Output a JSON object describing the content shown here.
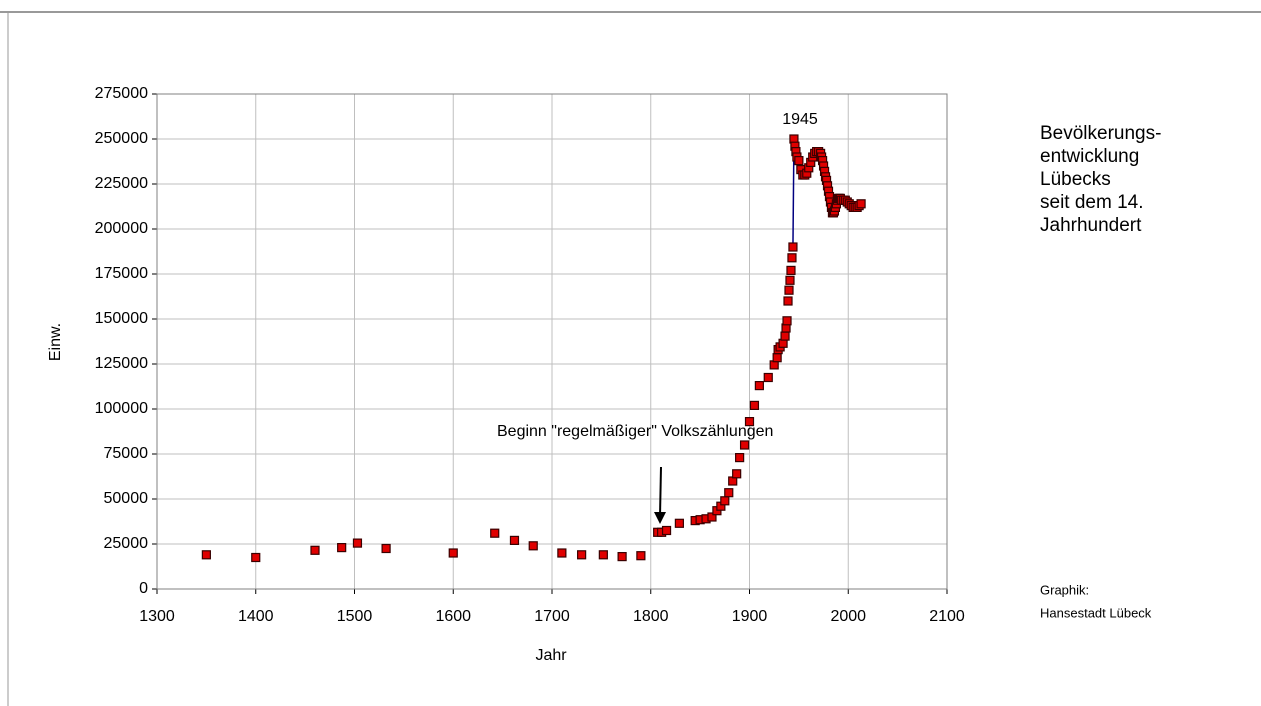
{
  "chart_data": {
    "type": "scatter",
    "title_lines": [
      "Bevölkerungs-",
      "entwicklung",
      "Lübecks",
      "seit dem 14.",
      "Jahrhundert"
    ],
    "credit_lines": [
      "Graphik:",
      "Hansestadt Lübeck"
    ],
    "xlabel": "Jahr",
    "ylabel": "Einw.",
    "annotations": [
      {
        "text": "1945"
      },
      {
        "text": "Beginn \"regelmäßiger\" Volkszählungen"
      }
    ],
    "xlim": [
      1300,
      2100
    ],
    "xticks": [
      1300,
      1400,
      1500,
      1600,
      1700,
      1800,
      1900,
      2000,
      2100
    ],
    "ylim": [
      0,
      275000
    ],
    "yticks": [
      0,
      25000,
      50000,
      75000,
      100000,
      125000,
      150000,
      175000,
      200000,
      225000,
      250000,
      275000
    ],
    "grid": true,
    "series": [
      {
        "color": "#e00000",
        "line": false,
        "x": [
          1350,
          1400,
          1460,
          1487,
          1503,
          1532,
          1600,
          1642,
          1662,
          1681,
          1710,
          1730,
          1752,
          1771,
          1790,
          1807,
          1811,
          1816,
          1829,
          1845,
          1850,
          1856,
          1862,
          1867,
          1871,
          1875,
          1879,
          1883,
          1887,
          1890,
          1895,
          1900,
          1905,
          1910,
          1919,
          1925,
          1928,
          1929,
          1931,
          1934,
          1936,
          1937,
          1938,
          1939,
          1940,
          1941,
          1942,
          1943
        ],
        "values": [
          19000,
          17500,
          21500,
          23000,
          25500,
          22500,
          20000,
          31000,
          27000,
          24000,
          20000,
          19000,
          19000,
          18000,
          18500,
          31500,
          31500,
          32500,
          36500,
          38000,
          38500,
          39000,
          40000,
          43500,
          46000,
          49000,
          53500,
          60000,
          64000,
          73000,
          80000,
          93000,
          102000,
          113000,
          117500,
          124500,
          128500,
          133000,
          134500,
          136500,
          140500,
          145000,
          149000,
          160000,
          166000,
          171500,
          177000,
          184000
        ]
      },
      {
        "color": "#e00000",
        "line": true,
        "line_color": "#000080",
        "x": [
          1944,
          1945,
          1946,
          1947,
          1948,
          1950,
          1952,
          1954,
          1956,
          1958,
          1960,
          1962,
          1964,
          1966,
          1968,
          1970,
          1972,
          1973,
          1974,
          1975,
          1976,
          1977,
          1978,
          1979,
          1980,
          1981,
          1982,
          1983,
          1984,
          1985,
          1986,
          1987,
          1988,
          1989,
          1990,
          1991,
          1992,
          1993,
          1995,
          1997,
          1999,
          2001,
          2003,
          2005,
          2007,
          2009,
          2011,
          2013
        ],
        "values": [
          190000,
          250000,
          246000,
          243000,
          240000,
          238000,
          233000,
          230000,
          230000,
          231000,
          234000,
          237000,
          240000,
          242000,
          243000,
          243000,
          242000,
          240000,
          238000,
          235000,
          232000,
          229000,
          227000,
          224000,
          221000,
          218000,
          215000,
          212000,
          209000,
          209000,
          210000,
          212000,
          214000,
          216000,
          217000,
          217000,
          217000,
          216000,
          216000,
          216000,
          215000,
          214000,
          213000,
          212000,
          212000,
          212000,
          213000,
          214000
        ]
      }
    ]
  }
}
